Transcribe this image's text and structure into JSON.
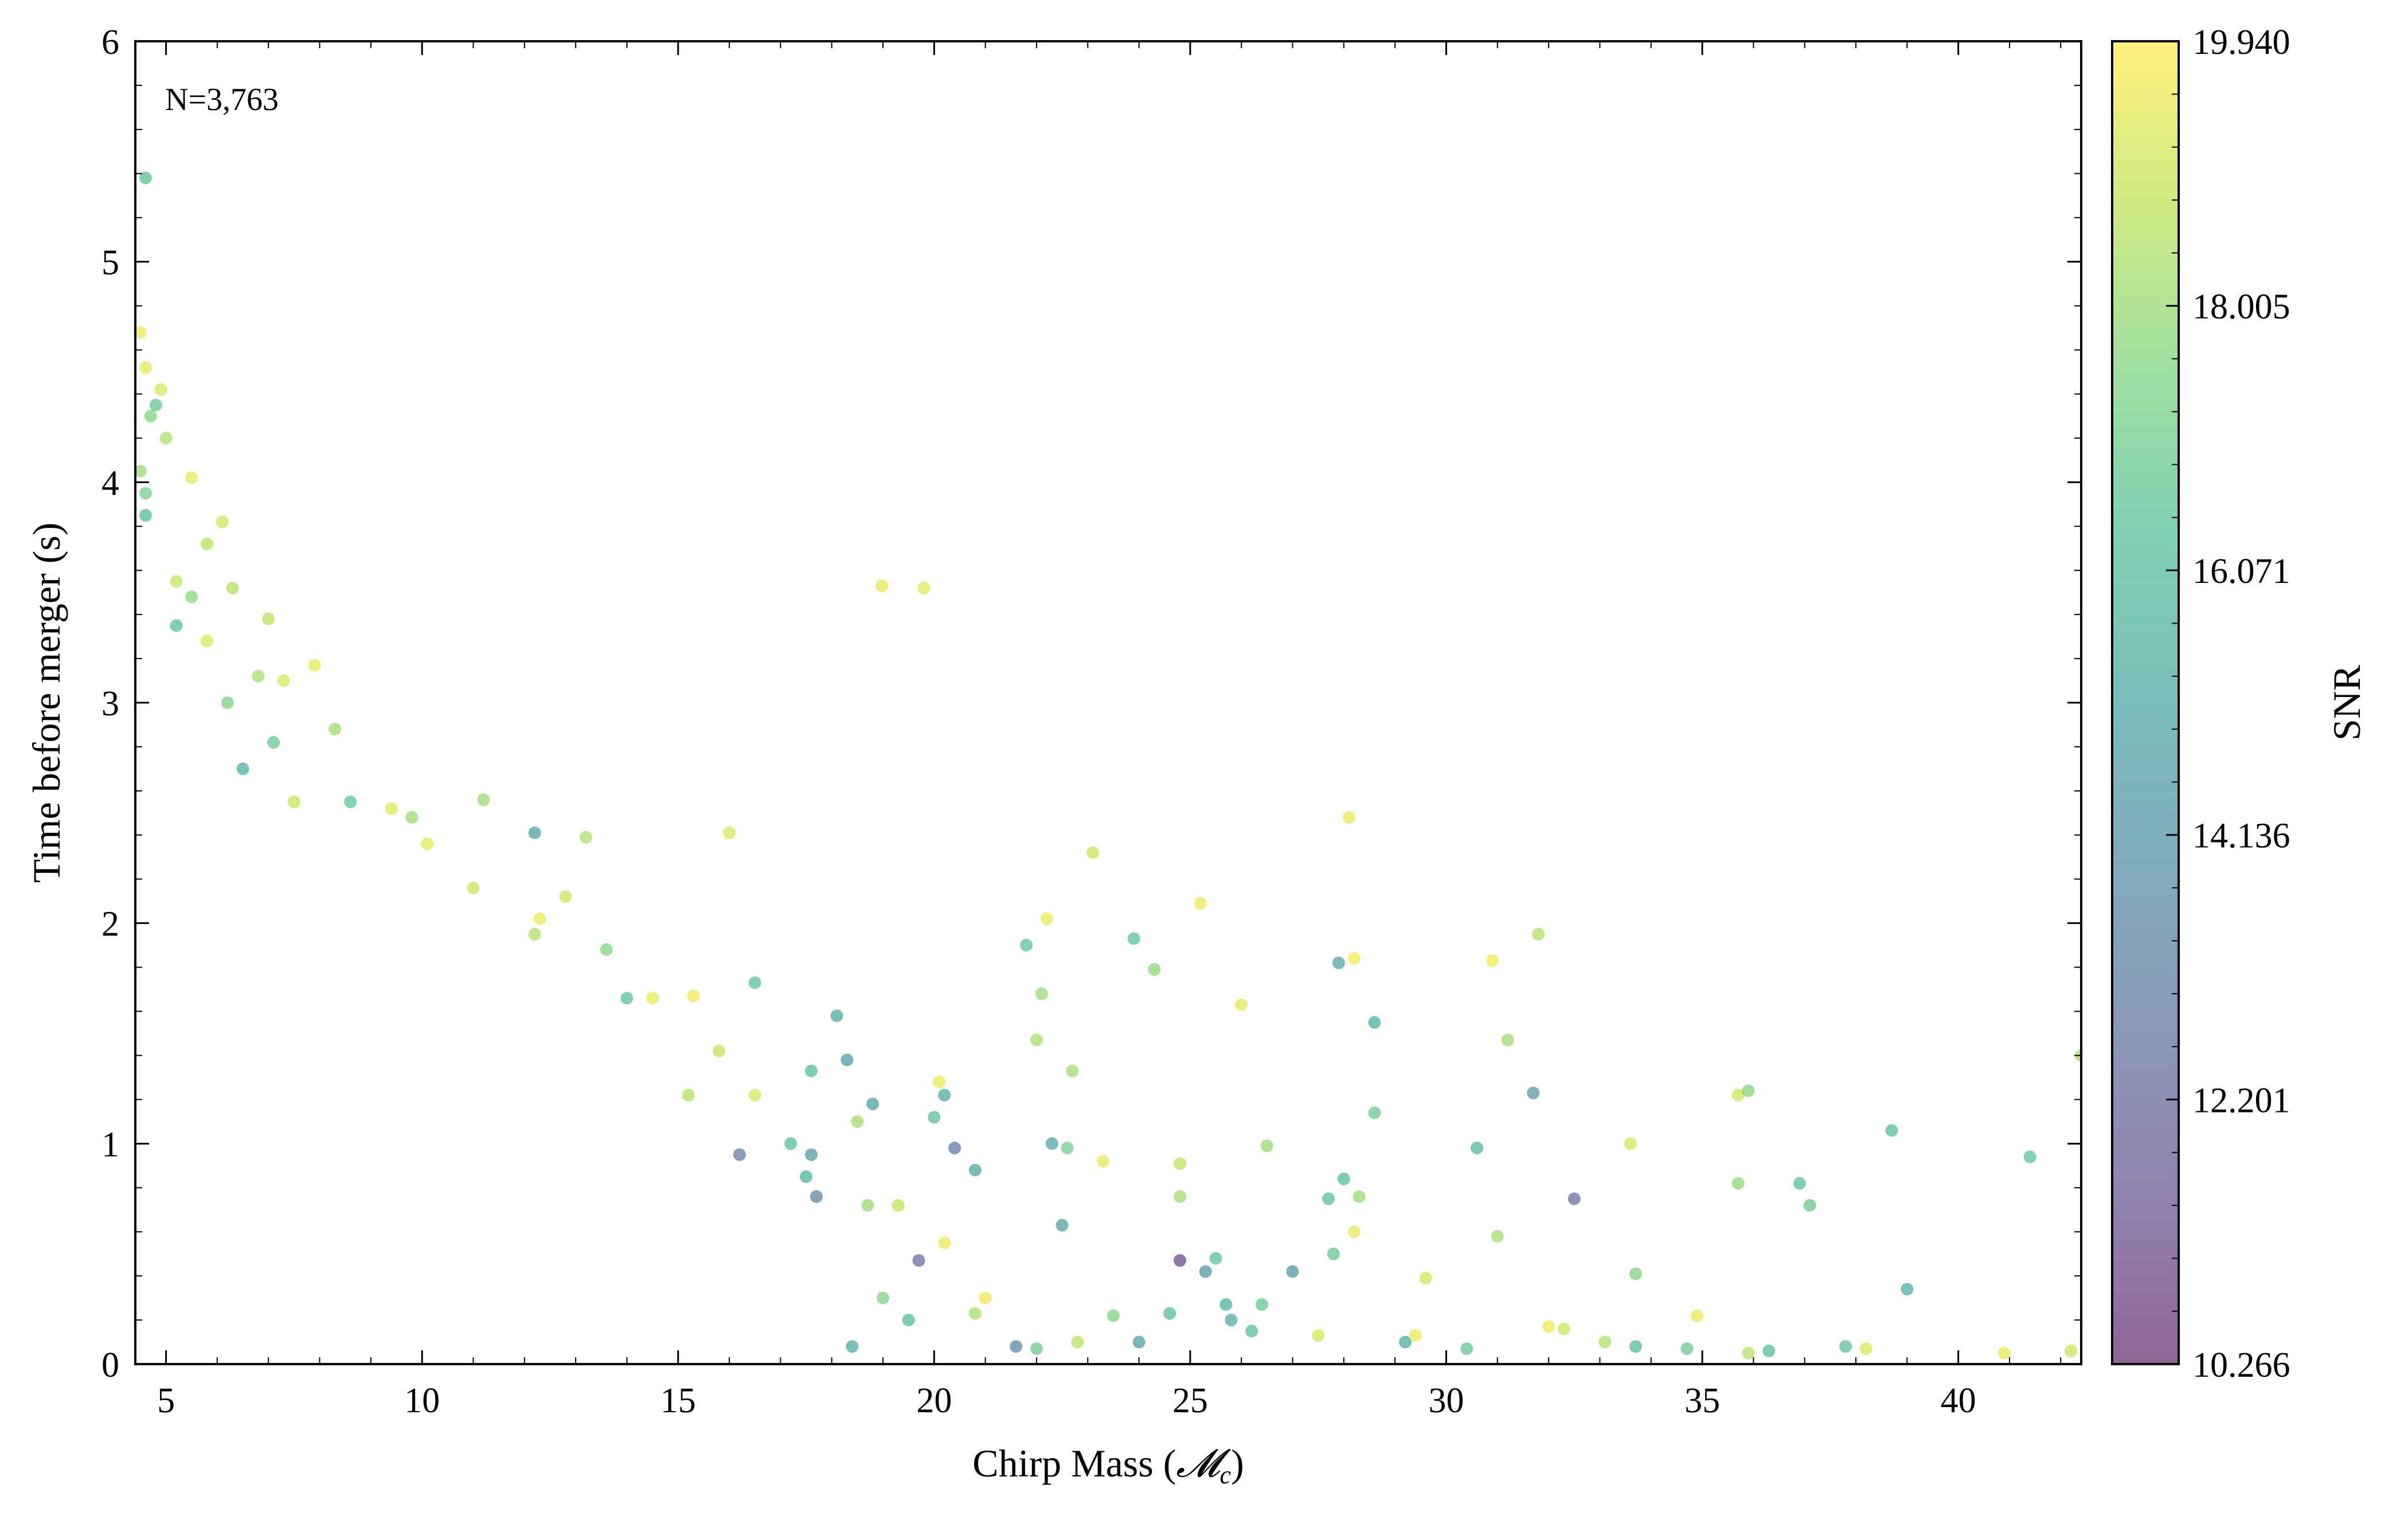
{
  "chart_data": {
    "type": "scatter",
    "annotation": "N=3,763",
    "xlabel": "Chirp Mass (",
    "xlabel_symbol": "𝓜",
    "xlabel_subscript": "c",
    "xlabel_close": ")",
    "ylabel": "Time before merger (s)",
    "xlim": [
      4.4,
      42.4
    ],
    "ylim": [
      0,
      6
    ],
    "xticks": [
      5,
      10,
      15,
      20,
      25,
      30,
      35,
      40
    ],
    "yticks": [
      0,
      1,
      2,
      3,
      4,
      5,
      6
    ],
    "grid": false,
    "colorbar": {
      "label": "SNR",
      "min": 10.266,
      "max": 19.94,
      "ticks": [
        "10.266",
        "12.201",
        "14.136",
        "16.071",
        "18.005",
        "19.940"
      ],
      "colormap": "viridis",
      "alpha": 0.6
    },
    "points": [
      [
        4.6,
        5.38,
        16.5
      ],
      [
        4.5,
        4.68,
        19.6
      ],
      [
        4.6,
        4.52,
        19.4
      ],
      [
        4.9,
        4.42,
        19.2
      ],
      [
        4.7,
        4.3,
        17.5
      ],
      [
        4.8,
        4.35,
        16.8
      ],
      [
        5.0,
        4.2,
        18.4
      ],
      [
        4.5,
        4.05,
        18.0
      ],
      [
        4.6,
        3.95,
        17.2
      ],
      [
        5.5,
        4.02,
        19.5
      ],
      [
        6.1,
        3.82,
        19.0
      ],
      [
        5.8,
        3.72,
        18.6
      ],
      [
        5.2,
        3.55,
        18.8
      ],
      [
        4.6,
        3.85,
        16.0
      ],
      [
        5.5,
        3.48,
        17.8
      ],
      [
        6.3,
        3.52,
        18.5
      ],
      [
        7.0,
        3.38,
        18.6
      ],
      [
        5.2,
        3.35,
        16.2
      ],
      [
        5.8,
        3.28,
        19.2
      ],
      [
        7.9,
        3.17,
        19.5
      ],
      [
        6.8,
        3.12,
        18.3
      ],
      [
        7.3,
        3.1,
        19.2
      ],
      [
        8.3,
        2.88,
        18.2
      ],
      [
        7.1,
        2.82,
        16.9
      ],
      [
        6.2,
        3.0,
        17.5
      ],
      [
        6.5,
        2.7,
        15.5
      ],
      [
        7.5,
        2.55,
        18.8
      ],
      [
        8.6,
        2.55,
        16.7
      ],
      [
        9.4,
        2.52,
        19.3
      ],
      [
        9.8,
        2.48,
        18.0
      ],
      [
        10.1,
        2.36,
        19.5
      ],
      [
        11.2,
        2.56,
        18.0
      ],
      [
        12.2,
        2.41,
        14.8
      ],
      [
        13.2,
        2.39,
        18.4
      ],
      [
        16.0,
        2.41,
        19.2
      ],
      [
        11.0,
        2.16,
        19.0
      ],
      [
        12.3,
        2.02,
        19.6
      ],
      [
        12.8,
        2.12,
        19.0
      ],
      [
        12.2,
        1.95,
        18.5
      ],
      [
        13.6,
        1.88,
        17.6
      ],
      [
        14.0,
        1.66,
        16.4
      ],
      [
        14.5,
        1.66,
        19.5
      ],
      [
        15.3,
        1.67,
        19.7
      ],
      [
        16.5,
        1.73,
        16.5
      ],
      [
        18.1,
        1.58,
        15.2
      ],
      [
        15.8,
        1.42,
        18.8
      ],
      [
        17.6,
        1.33,
        16.3
      ],
      [
        18.3,
        1.38,
        14.5
      ],
      [
        15.2,
        1.22,
        18.5
      ],
      [
        16.5,
        1.22,
        19.2
      ],
      [
        17.2,
        1.0,
        16.2
      ],
      [
        16.2,
        0.95,
        13.0
      ],
      [
        18.8,
        1.18,
        14.8
      ],
      [
        18.5,
        1.1,
        18.2
      ],
      [
        17.6,
        0.95,
        14.5
      ],
      [
        17.5,
        0.85,
        15.8
      ],
      [
        17.7,
        0.76,
        13.5
      ],
      [
        18.7,
        0.72,
        18.0
      ],
      [
        19.3,
        0.72,
        18.8
      ],
      [
        20.1,
        1.28,
        19.6
      ],
      [
        20.2,
        1.22,
        15.2
      ],
      [
        20.0,
        1.12,
        16.2
      ],
      [
        20.4,
        0.98,
        13.0
      ],
      [
        20.8,
        0.88,
        15.0
      ],
      [
        21.8,
        1.9,
        16.5
      ],
      [
        22.2,
        2.02,
        19.6
      ],
      [
        22.1,
        1.68,
        18.0
      ],
      [
        22.0,
        1.47,
        18.3
      ],
      [
        22.3,
        1.0,
        15.0
      ],
      [
        22.6,
        0.98,
        17.2
      ],
      [
        22.7,
        1.33,
        18.2
      ],
      [
        23.1,
        2.32,
        19.0
      ],
      [
        23.9,
        1.93,
        16.5
      ],
      [
        24.3,
        1.79,
        17.8
      ],
      [
        25.2,
        2.09,
        19.6
      ],
      [
        26.0,
        1.63,
        19.4
      ],
      [
        26.5,
        0.99,
        18.0
      ],
      [
        24.8,
        0.91,
        18.8
      ],
      [
        23.3,
        0.92,
        19.4
      ],
      [
        22.5,
        0.63,
        14.7
      ],
      [
        24.8,
        0.76,
        18.2
      ],
      [
        25.3,
        0.42,
        14.2
      ],
      [
        24.8,
        0.47,
        11.0
      ],
      [
        25.5,
        0.48,
        16.5
      ],
      [
        27.9,
        1.82,
        15.0
      ],
      [
        28.2,
        1.84,
        19.8
      ],
      [
        28.1,
        2.48,
        19.5
      ],
      [
        28.6,
        1.55,
        15.6
      ],
      [
        28.6,
        1.14,
        17.0
      ],
      [
        28.0,
        0.84,
        16.0
      ],
      [
        27.7,
        0.75,
        16.3
      ],
      [
        28.3,
        0.76,
        18.0
      ],
      [
        28.2,
        0.6,
        19.5
      ],
      [
        27.8,
        0.5,
        16.8
      ],
      [
        29.6,
        0.39,
        19.0
      ],
      [
        30.6,
        0.98,
        15.8
      ],
      [
        30.9,
        1.83,
        19.7
      ],
      [
        31.2,
        1.47,
        18.2
      ],
      [
        31.8,
        1.95,
        18.5
      ],
      [
        31.7,
        1.23,
        14.3
      ],
      [
        31.0,
        0.58,
        18.2
      ],
      [
        32.5,
        0.75,
        12.5
      ],
      [
        33.6,
        1.0,
        19.2
      ],
      [
        33.7,
        0.41,
        17.5
      ],
      [
        35.7,
        1.22,
        19.0
      ],
      [
        35.9,
        1.24,
        17.6
      ],
      [
        35.7,
        0.82,
        17.8
      ],
      [
        34.9,
        0.22,
        19.6
      ],
      [
        36.9,
        0.82,
        16.2
      ],
      [
        37.1,
        0.72,
        17.0
      ],
      [
        38.7,
        1.06,
        16.3
      ],
      [
        39.0,
        0.34,
        15.5
      ],
      [
        41.4,
        0.94,
        16.5
      ],
      [
        42.4,
        1.4,
        18.3
      ],
      [
        32.0,
        0.17,
        19.7
      ],
      [
        32.3,
        0.16,
        19.0
      ],
      [
        33.1,
        0.1,
        18.4
      ],
      [
        33.7,
        0.08,
        16.0
      ],
      [
        34.7,
        0.07,
        17.0
      ],
      [
        35.9,
        0.05,
        18.6
      ],
      [
        36.3,
        0.06,
        16.2
      ],
      [
        37.8,
        0.08,
        16.5
      ],
      [
        38.2,
        0.07,
        19.3
      ],
      [
        40.9,
        0.05,
        19.6
      ],
      [
        42.2,
        0.06,
        19.0
      ],
      [
        29.2,
        0.1,
        15.5
      ],
      [
        30.4,
        0.07,
        16.7
      ],
      [
        29.4,
        0.13,
        19.5
      ],
      [
        27.5,
        0.13,
        19.2
      ],
      [
        26.2,
        0.15,
        16.2
      ],
      [
        25.8,
        0.2,
        15.5
      ],
      [
        24.0,
        0.1,
        14.8
      ],
      [
        23.5,
        0.22,
        17.5
      ],
      [
        22.8,
        0.1,
        18.6
      ],
      [
        22.0,
        0.07,
        17.0
      ],
      [
        21.6,
        0.08,
        13.5
      ],
      [
        21.0,
        0.3,
        19.6
      ],
      [
        20.8,
        0.23,
        18.3
      ],
      [
        20.2,
        0.55,
        19.6
      ],
      [
        19.7,
        0.47,
        12.5
      ],
      [
        19.0,
        0.3,
        17.5
      ],
      [
        19.5,
        0.2,
        16.0
      ],
      [
        18.4,
        0.08,
        15.3
      ],
      [
        19.8,
        3.52,
        19.4
      ],
      [
        18.98,
        3.53,
        19.5
      ],
      [
        24.6,
        0.23,
        16.2
      ],
      [
        26.4,
        0.27,
        16.8
      ],
      [
        25.7,
        0.27,
        15.6
      ],
      [
        27.0,
        0.42,
        14.4
      ]
    ]
  }
}
